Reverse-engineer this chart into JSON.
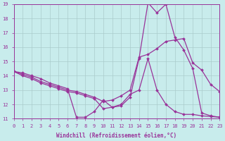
{
  "bg_color": "#c8ecec",
  "line_color": "#993399",
  "grid_color": "#aacccc",
  "xlabel": "Windchill (Refroidissement éolien,°C)",
  "xlim": [
    0,
    23
  ],
  "ylim": [
    11,
    19
  ],
  "xticks": [
    0,
    1,
    2,
    3,
    4,
    5,
    6,
    7,
    8,
    9,
    10,
    11,
    12,
    13,
    14,
    15,
    16,
    17,
    18,
    19,
    20,
    21,
    22,
    23
  ],
  "yticks": [
    11,
    12,
    13,
    14,
    15,
    16,
    17,
    18,
    19
  ],
  "line1_x": [
    0,
    1,
    2,
    3,
    4,
    5,
    6,
    7,
    8,
    9,
    10,
    11,
    12,
    13,
    14,
    15,
    16,
    17,
    18,
    19,
    20,
    21,
    22,
    23
  ],
  "line1_y": [
    14.3,
    14.2,
    14.0,
    13.8,
    13.5,
    13.3,
    13.1,
    11.1,
    11.1,
    11.5,
    12.3,
    11.8,
    11.9,
    12.5,
    15.2,
    19.1,
    18.4,
    19.0,
    16.7,
    15.8,
    14.5,
    11.4,
    11.2,
    11.1
  ],
  "line2_x": [
    0,
    1,
    2,
    3,
    4,
    5,
    6,
    7,
    8,
    9,
    10,
    11,
    12,
    13,
    14,
    15,
    16,
    17,
    18,
    19,
    20,
    21,
    22,
    23
  ],
  "line2_y": [
    14.3,
    14.1,
    13.9,
    13.6,
    13.4,
    13.2,
    13.0,
    12.9,
    12.7,
    12.5,
    12.2,
    12.3,
    12.6,
    13.0,
    15.3,
    15.5,
    15.9,
    16.4,
    16.5,
    16.6,
    14.9,
    14.4,
    13.4,
    12.9
  ],
  "line3_x": [
    0,
    1,
    2,
    3,
    4,
    5,
    6,
    7,
    8,
    9,
    10,
    11,
    12,
    13,
    14,
    15,
    16,
    17,
    18,
    19,
    20,
    21,
    22,
    23
  ],
  "line3_y": [
    14.3,
    14.0,
    13.8,
    13.5,
    13.3,
    13.1,
    12.9,
    12.8,
    12.6,
    12.4,
    11.7,
    11.8,
    12.0,
    12.7,
    13.0,
    15.2,
    13.0,
    12.0,
    11.5,
    11.3,
    11.3,
    11.2,
    11.15,
    11.1
  ]
}
